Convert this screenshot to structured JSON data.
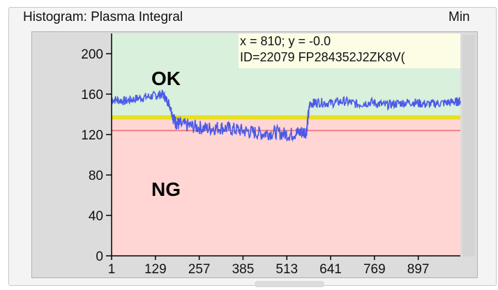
{
  "header": {
    "title": "Histogram: Plasma Integral",
    "min_label": "Min"
  },
  "readout": {
    "line1": "x = 810; y = -0.0",
    "line2": "ID=22079  FP284352J2ZK8V("
  },
  "zones": {
    "ok_label": "OK",
    "ng_label": "NG",
    "ok_color": "#d9f0dc",
    "ng_color": "#ffd6d4"
  },
  "chart_data": {
    "type": "line",
    "title": "",
    "xlabel": "",
    "ylabel": "",
    "xlim": [
      1,
      1020
    ],
    "ylim": [
      0,
      220
    ],
    "x_ticks": [
      1,
      129,
      257,
      385,
      513,
      641,
      769,
      897
    ],
    "y_ticks": [
      0,
      40,
      80,
      120,
      160,
      200
    ],
    "grid": false,
    "thresholds": [
      {
        "y": 137,
        "color": "#e8e020"
      },
      {
        "y": 124,
        "color": "#f08080"
      }
    ],
    "series": [
      {
        "color": "#4a5ae8",
        "x": [
          1,
          40,
          80,
          120,
          150,
          170,
          185,
          200,
          240,
          280,
          320,
          360,
          400,
          440,
          480,
          520,
          550,
          570,
          580,
          600,
          640,
          680,
          720,
          760,
          800,
          840,
          880,
          920,
          960,
          1000,
          1020
        ],
        "y": [
          155,
          153,
          156,
          158,
          160,
          150,
          133,
          130,
          128,
          126,
          127,
          125,
          123,
          121,
          122,
          120,
          122,
          123,
          150,
          152,
          151,
          153,
          150,
          152,
          149,
          151,
          152,
          150,
          151,
          152,
          153
        ]
      }
    ]
  }
}
